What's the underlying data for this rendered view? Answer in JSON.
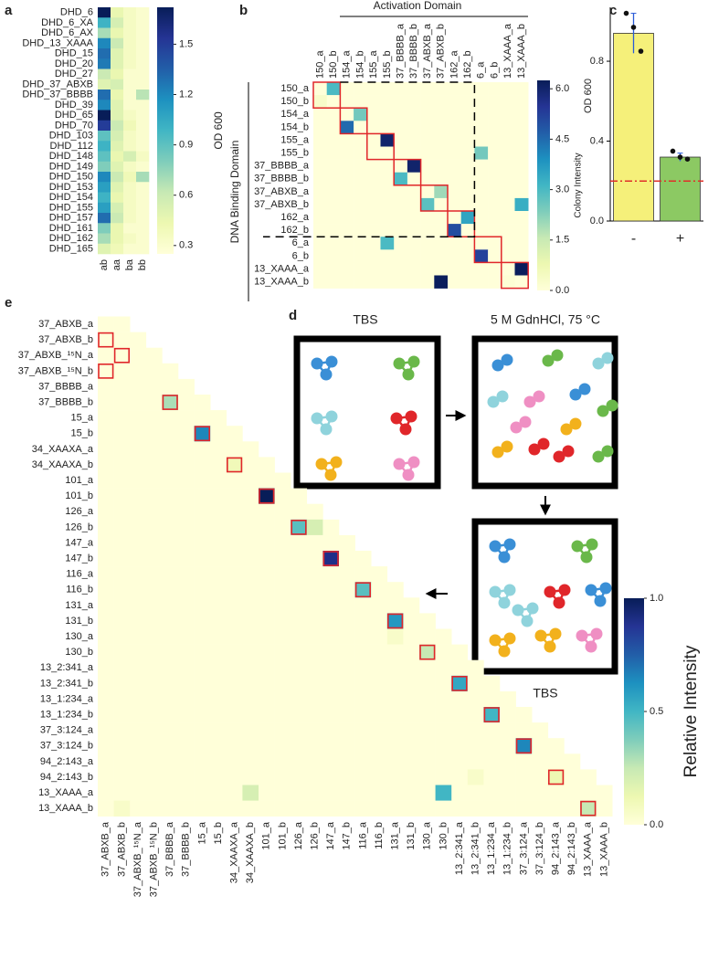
{
  "chart_data": [
    {
      "type": "heatmap",
      "panel": "a",
      "rows": [
        "DHD_6",
        "DHD_6_XA",
        "DHD_6_AX",
        "DHD_13_XAAA",
        "DHD_15",
        "DHD_20",
        "DHD_27",
        "DHD_37_ABXB",
        "DHD_37_BBBB",
        "DHD_39",
        "DHD_65",
        "DHD_70",
        "DHD_103",
        "DHD_112",
        "DHD_148",
        "DHD_149",
        "DHD_150",
        "DHD_153",
        "DHD_154",
        "DHD_155",
        "DHD_157",
        "DHD_161",
        "DHD_162",
        "DHD_165"
      ],
      "columns": [
        "ab",
        "aa",
        "ba",
        "bb"
      ],
      "values": [
        [
          1.72,
          0.45,
          0.35,
          0.3
        ],
        [
          1.0,
          0.55,
          0.35,
          0.3
        ],
        [
          0.7,
          0.45,
          0.35,
          0.3
        ],
        [
          1.2,
          0.6,
          0.35,
          0.3
        ],
        [
          1.3,
          0.5,
          0.35,
          0.3
        ],
        [
          1.25,
          0.5,
          0.35,
          0.3
        ],
        [
          0.6,
          0.45,
          0.3,
          0.3
        ],
        [
          0.5,
          0.55,
          0.3,
          0.3
        ],
        [
          1.3,
          0.45,
          0.3,
          0.65
        ],
        [
          1.2,
          0.5,
          0.3,
          0.3
        ],
        [
          1.72,
          0.5,
          0.35,
          0.3
        ],
        [
          1.5,
          0.6,
          0.4,
          0.3
        ],
        [
          0.9,
          0.55,
          0.35,
          0.3
        ],
        [
          1.0,
          0.5,
          0.35,
          0.3
        ],
        [
          0.9,
          0.45,
          0.55,
          0.35
        ],
        [
          0.8,
          0.5,
          0.35,
          0.3
        ],
        [
          1.2,
          0.6,
          0.4,
          0.7
        ],
        [
          1.1,
          0.5,
          0.35,
          0.3
        ],
        [
          1.0,
          0.45,
          0.35,
          0.3
        ],
        [
          1.1,
          0.55,
          0.35,
          0.3
        ],
        [
          1.3,
          0.6,
          0.35,
          0.3
        ],
        [
          0.8,
          0.45,
          0.3,
          0.3
        ],
        [
          0.7,
          0.45,
          0.35,
          0.3
        ],
        [
          0.5,
          0.4,
          0.3,
          0.3
        ]
      ],
      "clim": [
        0.25,
        1.72
      ],
      "cticks": [
        0.3,
        0.6,
        0.9,
        1.2,
        1.5
      ],
      "clabel": "OD 600"
    },
    {
      "type": "heatmap",
      "panel": "b",
      "title": "Activation Domain",
      "ylabel": "DNA Binding Domain",
      "categories": [
        "150_a",
        "150_b",
        "154_a",
        "154_b",
        "155_a",
        "155_b",
        "37_BBBB_a",
        "37_BBBB_b",
        "37_ABXB_a",
        "37_ABXB_b",
        "162_a",
        "162_b",
        "6_a",
        "6_b",
        "13_XAAA_a",
        "13_XAAA_b"
      ],
      "values": [
        [
          0,
          3.0,
          0,
          0,
          0,
          0,
          0,
          0,
          0,
          0,
          0,
          0,
          0,
          0,
          0,
          0
        ],
        [
          0.3,
          0,
          0,
          0,
          0,
          0,
          0,
          0,
          0,
          0,
          0,
          0,
          0,
          0,
          0,
          0
        ],
        [
          0,
          0,
          0,
          2.5,
          0,
          0,
          0,
          0,
          0,
          0,
          0,
          0,
          0,
          0,
          0,
          0
        ],
        [
          0,
          0,
          4.5,
          0,
          0,
          0,
          0,
          0,
          0,
          0,
          0,
          0,
          0,
          0,
          0,
          0
        ],
        [
          0,
          0,
          0,
          0,
          0,
          6.0,
          0,
          0,
          0,
          0,
          0,
          0,
          0,
          0,
          0,
          0
        ],
        [
          0,
          0,
          0,
          0,
          0,
          0,
          0,
          0,
          0,
          0,
          0,
          0,
          2.5,
          0,
          0,
          0
        ],
        [
          0,
          0,
          0,
          0,
          0,
          0,
          0,
          6.0,
          0,
          0,
          0,
          0,
          0,
          0,
          0,
          0
        ],
        [
          0,
          0,
          0,
          0,
          0,
          0,
          3.0,
          0,
          0,
          0,
          0,
          0,
          0,
          0,
          0,
          0
        ],
        [
          0,
          0,
          0,
          0,
          0,
          0,
          0,
          0,
          0,
          2.0,
          0,
          0,
          0,
          0,
          0,
          0
        ],
        [
          0,
          0,
          0,
          0,
          0,
          0,
          0,
          0,
          2.8,
          0,
          0,
          0,
          0,
          0,
          0,
          3.3
        ],
        [
          0,
          0,
          0,
          0,
          0,
          0,
          0,
          0,
          0,
          0,
          0,
          3.5,
          0,
          0,
          0,
          0
        ],
        [
          0,
          0,
          0,
          0,
          0,
          0,
          0,
          0,
          0,
          0,
          5.0,
          0,
          0,
          0,
          0,
          0
        ],
        [
          0,
          0,
          0,
          0,
          0,
          3.0,
          0,
          0,
          0,
          0,
          0,
          0,
          0,
          0,
          0,
          0
        ],
        [
          0,
          0,
          0,
          0,
          0,
          0,
          0,
          0,
          0,
          0,
          0,
          0,
          5.2,
          0,
          0,
          0
        ],
        [
          0,
          0,
          0,
          0,
          0,
          0,
          0,
          0,
          0,
          0,
          0,
          0,
          0,
          0,
          0,
          6.2
        ],
        [
          0,
          0,
          0,
          0,
          0,
          0,
          0,
          0,
          0,
          6.2,
          0,
          0,
          0,
          0,
          0.1,
          0
        ]
      ],
      "clim": [
        0,
        6.25
      ],
      "cticks": [
        {
          "value": 6,
          "label": "6.0"
        },
        4.5,
        {
          "value": 3,
          "label": "3.0"
        },
        1.5,
        {
          "value": 0,
          "label": "0.0"
        }
      ],
      "clabel": "Colony Intensity"
    },
    {
      "type": "bar",
      "panel": "c",
      "categories": [
        "-",
        "+"
      ],
      "values": [
        0.94,
        0.32
      ],
      "errors": [
        0.1,
        0.02
      ],
      "points": [
        [
          1.04,
          0.97,
          0.85
        ],
        [
          0.35,
          0.32,
          0.31
        ]
      ],
      "colors": [
        "#f5f07a",
        "#8cc963"
      ],
      "error_color": "#2a5bd7",
      "threshold": 0.2,
      "threshold_color": "#e0302a",
      "ylabel": "OD 600",
      "ylim": [
        0,
        1.07
      ],
      "yticks": [
        {
          "value": 0,
          "label": "0.0"
        },
        0.4,
        0.8
      ]
    },
    {
      "type": "heatmap",
      "panel": "e",
      "categories": [
        "37_ABXB_a",
        "37_ABXB_b",
        "37_ABXB_¹⁵N_a",
        "37_ABXB_¹⁵N_b",
        "37_BBBB_a",
        "37_BBBB_b",
        "15_a",
        "15_b",
        "34_XAAXA_a",
        "34_XAAXA_b",
        "101_a",
        "101_b",
        "126_a",
        "126_b",
        "147_a",
        "147_b",
        "116_a",
        "116_b",
        "131_a",
        "131_b",
        "130_a",
        "130_b",
        "13_2:341_a",
        "13_2:341_b",
        "13_1:234_a",
        "13_1:234_b",
        "37_3:124_a",
        "37_3:124_b",
        "94_2:143_a",
        "94_2:143_b",
        "13_XAAA_a",
        "13_XAAA_b"
      ],
      "values": [
        [
          0,
          0
        ],
        [
          0,
          0,
          0
        ],
        [
          0,
          0,
          0,
          0
        ],
        [
          0,
          0,
          0,
          0,
          0
        ],
        [
          0,
          0,
          0,
          0,
          0,
          0
        ],
        [
          0,
          0,
          0,
          0,
          0.3,
          0,
          0
        ],
        [
          0,
          0,
          0,
          0,
          0,
          0,
          0,
          0
        ],
        [
          0,
          0,
          0,
          0,
          0,
          0,
          0.65,
          0,
          0
        ],
        [
          0,
          0,
          0,
          0,
          0,
          0,
          0,
          0,
          0,
          0
        ],
        [
          0,
          0,
          0,
          0,
          0,
          0,
          0,
          0,
          0.1,
          0,
          0
        ],
        [
          0,
          0,
          0,
          0,
          0,
          0,
          0,
          0,
          0,
          0,
          0,
          0
        ],
        [
          0,
          0,
          0,
          0,
          0,
          0,
          0,
          0,
          0,
          0,
          1.0,
          0,
          0
        ],
        [
          0,
          0,
          0,
          0,
          0,
          0,
          0,
          0,
          0,
          0,
          0,
          0,
          0,
          0
        ],
        [
          0,
          0,
          0,
          0,
          0,
          0,
          0,
          0,
          0,
          0,
          0,
          0,
          0.45,
          0.2,
          0
        ],
        [
          0,
          0,
          0,
          0,
          0,
          0,
          0,
          0,
          0,
          0,
          0,
          0,
          0,
          0,
          0,
          0
        ],
        [
          0,
          0,
          0,
          0,
          0,
          0,
          0,
          0,
          0,
          0,
          0,
          0,
          0,
          0,
          0.9,
          0,
          0
        ],
        [
          0,
          0,
          0,
          0,
          0,
          0,
          0,
          0,
          0,
          0,
          0,
          0,
          0,
          0,
          0,
          0,
          0,
          0
        ],
        [
          0,
          0,
          0,
          0,
          0,
          0,
          0,
          0,
          0,
          0,
          0,
          0,
          0,
          0,
          0,
          0,
          0.45,
          0,
          0
        ],
        [
          0,
          0,
          0,
          0,
          0,
          0,
          0,
          0,
          0,
          0,
          0,
          0,
          0,
          0,
          0,
          0,
          0,
          0,
          0,
          0
        ],
        [
          0,
          0,
          0,
          0,
          0,
          0,
          0,
          0,
          0,
          0,
          0,
          0,
          0,
          0,
          0,
          0,
          0,
          0,
          0.6,
          0,
          0
        ],
        [
          0,
          0,
          0,
          0,
          0,
          0,
          0,
          0,
          0,
          0,
          0,
          0,
          0,
          0,
          0,
          0,
          0,
          0,
          0.05,
          0,
          0,
          0
        ],
        [
          0,
          0,
          0,
          0,
          0,
          0,
          0,
          0,
          0,
          0,
          0,
          0,
          0,
          0,
          0,
          0,
          0,
          0,
          0,
          0,
          0.25,
          0,
          0
        ],
        [
          0,
          0,
          0,
          0,
          0,
          0,
          0,
          0,
          0,
          0,
          0,
          0,
          0,
          0,
          0,
          0,
          0,
          0,
          0,
          0,
          0,
          0,
          0,
          0
        ],
        [
          0,
          0,
          0,
          0,
          0,
          0,
          0,
          0,
          0,
          0,
          0,
          0,
          0,
          0,
          0,
          0,
          0,
          0,
          0,
          0,
          0,
          0,
          0.55,
          0,
          0
        ],
        [
          0,
          0,
          0,
          0,
          0,
          0,
          0,
          0,
          0,
          0,
          0,
          0,
          0,
          0,
          0,
          0,
          0,
          0,
          0,
          0,
          0,
          0,
          0,
          0,
          0,
          0
        ],
        [
          0,
          0,
          0,
          0,
          0,
          0,
          0,
          0,
          0,
          0,
          0,
          0,
          0,
          0,
          0,
          0,
          0,
          0,
          0,
          0,
          0,
          0,
          0,
          0,
          0.5,
          0,
          0
        ],
        [
          0,
          0,
          0,
          0,
          0,
          0,
          0,
          0,
          0,
          0,
          0,
          0,
          0,
          0,
          0,
          0,
          0,
          0,
          0,
          0,
          0,
          0,
          0,
          0,
          0,
          0,
          0,
          0
        ],
        [
          0,
          0,
          0,
          0,
          0,
          0,
          0,
          0,
          0,
          0,
          0,
          0,
          0,
          0,
          0,
          0,
          0,
          0,
          0,
          0,
          0,
          0,
          0,
          0,
          0,
          0,
          0.65,
          0,
          0
        ],
        [
          0,
          0,
          0,
          0,
          0,
          0,
          0,
          0,
          0,
          0,
          0,
          0,
          0,
          0,
          0,
          0,
          0,
          0,
          0,
          0,
          0,
          0,
          0,
          0,
          0,
          0,
          0,
          0,
          0,
          0
        ],
        [
          0,
          0,
          0,
          0,
          0,
          0,
          0,
          0,
          0,
          0,
          0,
          0,
          0,
          0,
          0,
          0,
          0,
          0,
          0,
          0,
          0,
          0,
          0,
          0.05,
          0,
          0,
          0,
          0,
          0.12,
          0,
          0
        ],
        [
          0,
          0,
          0,
          0,
          0,
          0,
          0,
          0,
          0,
          0.2,
          0,
          0,
          0,
          0,
          0,
          0,
          0,
          0,
          0,
          0,
          0,
          0.5,
          0,
          0,
          0,
          0,
          0,
          0,
          0,
          0,
          0,
          0
        ],
        [
          0,
          0.05,
          0,
          0,
          0,
          0,
          0,
          0,
          0,
          0,
          0,
          0,
          0,
          0,
          0,
          0,
          0,
          0,
          0,
          0,
          0,
          0,
          0,
          0,
          0,
          0,
          0,
          0,
          0,
          0,
          0.25,
          0
        ]
      ],
      "highlights": [
        [
          1,
          0
        ],
        [
          2,
          1
        ],
        [
          3,
          0
        ],
        [
          5,
          4
        ],
        [
          7,
          6
        ],
        [
          9,
          8
        ],
        [
          11,
          10
        ],
        [
          13,
          12
        ],
        [
          15,
          14
        ],
        [
          17,
          16
        ],
        [
          19,
          18
        ],
        [
          21,
          20
        ],
        [
          23,
          22
        ],
        [
          25,
          24
        ],
        [
          27,
          26
        ],
        [
          29,
          28
        ],
        [
          31,
          30
        ]
      ],
      "clim": [
        0,
        1
      ],
      "cticks": [
        {
          "value": 1,
          "label": "1.0"
        },
        0.5,
        {
          "value": 0,
          "label": "0.0"
        }
      ],
      "clabel": "Relative Intensity"
    }
  ],
  "diagram": {
    "panel": "d",
    "labels": [
      "TBS",
      "5 M GdnHCl, 75 °C",
      "TBS"
    ]
  }
}
